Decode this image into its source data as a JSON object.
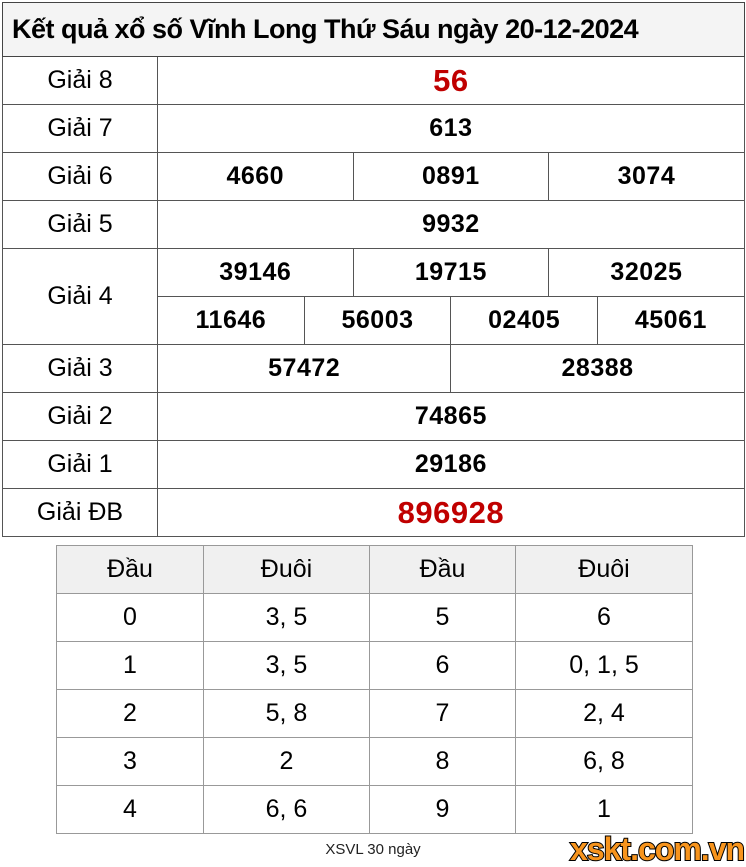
{
  "title": "Kết quả xổ số Vĩnh Long Thứ Sáu ngày 20-12-2024",
  "results": {
    "rows": [
      {
        "label": "Giải 8",
        "highlight": true,
        "groups": [
          [
            "56"
          ]
        ]
      },
      {
        "label": "Giải 7",
        "highlight": false,
        "groups": [
          [
            "613"
          ]
        ]
      },
      {
        "label": "Giải 6",
        "highlight": false,
        "groups": [
          [
            "4660",
            "0891",
            "3074"
          ]
        ]
      },
      {
        "label": "Giải 5",
        "highlight": false,
        "groups": [
          [
            "9932"
          ]
        ]
      },
      {
        "label": "Giải 4",
        "highlight": false,
        "groups": [
          [
            "39146",
            "19715",
            "32025"
          ],
          [
            "11646",
            "56003",
            "02405",
            "45061"
          ]
        ]
      },
      {
        "label": "Giải 3",
        "highlight": false,
        "groups": [
          [
            "57472",
            "28388"
          ]
        ]
      },
      {
        "label": "Giải 2",
        "highlight": false,
        "groups": [
          [
            "74865"
          ]
        ]
      },
      {
        "label": "Giải 1",
        "highlight": false,
        "groups": [
          [
            "29186"
          ]
        ]
      },
      {
        "label": "Giải ĐB",
        "highlight": true,
        "groups": [
          [
            "896928"
          ]
        ]
      }
    ]
  },
  "head_tail": {
    "headers": [
      "Đầu",
      "Đuôi",
      "Đầu",
      "Đuôi"
    ],
    "rows": [
      [
        "0",
        "3, 5",
        "5",
        "6"
      ],
      [
        "1",
        "3, 5",
        "6",
        "0, 1, 5"
      ],
      [
        "2",
        "5, 8",
        "7",
        "2, 4"
      ],
      [
        "3",
        "2",
        "8",
        "6, 8"
      ],
      [
        "4",
        "6, 6",
        "9",
        "1"
      ]
    ]
  },
  "footer": {
    "note": "XSVL 30 ngày",
    "logo": "xskt.com.vn"
  },
  "colors": {
    "highlight_red": "#c00000",
    "title_bg": "#f4f4f4",
    "header_bg": "#f0f0f0",
    "logo_orange": "#f7941d",
    "border_dark": "#555555",
    "border_light": "#999999"
  }
}
